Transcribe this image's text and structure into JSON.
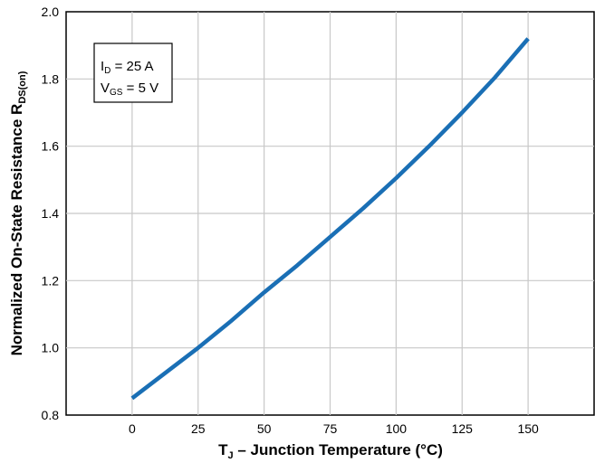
{
  "chart_data": {
    "type": "line",
    "xlabel_main": "T",
    "xlabel_sub": "J",
    "xlabel_rest": " – Junction Temperature (°C)",
    "ylabel_main": "Normalized On-State Resistance R",
    "ylabel_sub": "DS(on)",
    "xlim": [
      -25,
      175
    ],
    "ylim": [
      0.8,
      2.0
    ],
    "x_ticks": [
      "0",
      "25",
      "50",
      "75",
      "100",
      "125",
      "150"
    ],
    "x_tick_values": [
      0,
      25,
      50,
      75,
      100,
      125,
      150
    ],
    "y_ticks": [
      "0.8",
      "1.0",
      "1.2",
      "1.4",
      "1.6",
      "1.8",
      "2.0"
    ],
    "y_tick_values": [
      0.8,
      1.0,
      1.2,
      1.4,
      1.6,
      1.8,
      2.0
    ],
    "grid": true,
    "series": [
      {
        "color": "#1a6fb5",
        "x": [
          0,
          12.5,
          25,
          37.5,
          50,
          62.5,
          75,
          87.5,
          100,
          112.5,
          125,
          137.5,
          150
        ],
        "y": [
          0.85,
          0.925,
          1.0,
          1.08,
          1.165,
          1.245,
          1.33,
          1.415,
          1.505,
          1.6,
          1.7,
          1.805,
          1.92
        ]
      }
    ],
    "annotation": {
      "line1_main": "I",
      "line1_sub": "D",
      "line1_rest": " = 25 A",
      "line2_main": "V",
      "line2_sub": "GS",
      "line2_rest": " = 5 V"
    }
  }
}
